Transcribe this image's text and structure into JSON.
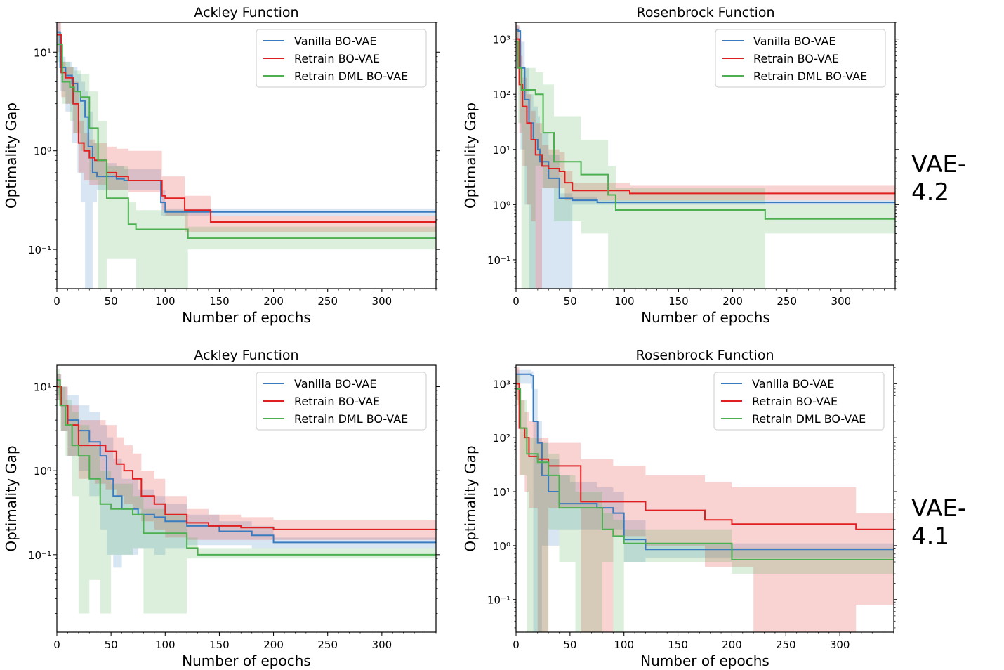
{
  "figure": {
    "row_labels": [
      "VAE-4.2",
      "VAE-4.1"
    ]
  },
  "chart_data": [
    {
      "type": "line",
      "title": "Ackley Function",
      "xlabel": "Number of epochs",
      "ylabel": "Optimality Gap",
      "yscale": "log",
      "xlim": [
        0,
        350
      ],
      "ylim": [
        0.04,
        20
      ],
      "xticks": [
        0,
        50,
        100,
        150,
        200,
        250,
        300
      ],
      "xtick_labels": [
        "0",
        "50",
        "100",
        "150",
        "200",
        "250",
        "300"
      ],
      "yticks": [
        0.1,
        1,
        10
      ],
      "ytick_labels": [
        "10⁻¹",
        "10⁰",
        "10¹"
      ],
      "legend": "top-right",
      "series": [
        {
          "name": "Vanilla BO-VAE",
          "color": "#3a7bbf",
          "x": [
            0,
            3,
            8,
            14,
            19,
            22,
            26,
            29,
            33,
            37,
            45,
            55,
            62,
            72,
            96,
            100,
            113,
            118,
            350
          ],
          "y": [
            16,
            7,
            5.8,
            4.8,
            4,
            3.2,
            2.2,
            1.1,
            0.6,
            0.55,
            0.55,
            0.52,
            0.5,
            0.5,
            0.3,
            0.24,
            0.24,
            0.24,
            0.24
          ],
          "lower": [
            12,
            4,
            2.5,
            1.2,
            0.6,
            0.3,
            0.02,
            0.02,
            0.3,
            0.4,
            0.4,
            0.4,
            0.4,
            0.4,
            0.22,
            0.22,
            0.22,
            0.22,
            0.22
          ],
          "upper": [
            20,
            9,
            8,
            7,
            6,
            5,
            4,
            2.5,
            1.2,
            0.8,
            0.75,
            0.7,
            0.65,
            0.65,
            0.4,
            0.26,
            0.26,
            0.26,
            0.26
          ]
        },
        {
          "name": "Retrain BO-VAE",
          "color": "#e02020",
          "x": [
            0,
            4,
            8,
            15,
            20,
            25,
            30,
            35,
            46,
            55,
            66,
            97,
            100,
            118,
            124,
            142,
            350
          ],
          "y": [
            15,
            6.2,
            5.5,
            3,
            1.2,
            1.0,
            0.85,
            0.8,
            0.6,
            0.55,
            0.5,
            0.35,
            0.33,
            0.25,
            0.25,
            0.19,
            0.19
          ],
          "lower": [
            10,
            3.5,
            3,
            1.5,
            0.6,
            0.5,
            0.45,
            0.45,
            0.4,
            0.4,
            0.38,
            0.25,
            0.22,
            0.15,
            0.15,
            0.15,
            0.15
          ],
          "upper": [
            20,
            8,
            7,
            5,
            2,
            1.5,
            1.3,
            1.2,
            1.1,
            1.05,
            1.0,
            0.55,
            0.55,
            0.35,
            0.35,
            0.22,
            0.22
          ]
        },
        {
          "name": "Retrain DML BO-VAE",
          "color": "#4caf50",
          "x": [
            0,
            5,
            12,
            16,
            22,
            30,
            38,
            46,
            66,
            73,
            121,
            350
          ],
          "y": [
            12,
            5.0,
            4.4,
            4.0,
            3.5,
            1.7,
            0.8,
            0.33,
            0.18,
            0.16,
            0.13,
            0.13
          ],
          "lower": [
            8,
            3,
            2,
            1.5,
            1.0,
            0.5,
            0.02,
            0.08,
            0.08,
            0.02,
            0.1,
            0.1
          ],
          "upper": [
            16,
            8,
            7,
            6.5,
            6,
            4,
            2,
            0.7,
            0.3,
            0.25,
            0.17,
            0.17
          ]
        }
      ]
    },
    {
      "type": "line",
      "title": "Rosenbrock Function",
      "xlabel": "Number of epochs",
      "ylabel": "Optimality Gap",
      "yscale": "log",
      "xlim": [
        0,
        350
      ],
      "ylim": [
        0.03,
        2000
      ],
      "xticks": [
        0,
        50,
        100,
        150,
        200,
        250,
        300
      ],
      "xtick_labels": [
        "0",
        "50",
        "100",
        "150",
        "200",
        "250",
        "300"
      ],
      "yticks": [
        0.1,
        1,
        10,
        100,
        1000
      ],
      "ytick_labels": [
        "10⁻¹",
        "10⁰",
        "10¹",
        "10²",
        "10³"
      ],
      "legend": "top-right",
      "series": [
        {
          "name": "Vanilla BO-VAE",
          "color": "#3a7bbf",
          "x": [
            0,
            2,
            4,
            8,
            12,
            16,
            20,
            22,
            30,
            40,
            52,
            75,
            350
          ],
          "y": [
            1500,
            1400,
            300,
            80,
            30,
            15,
            10,
            6,
            3,
            1.3,
            1.2,
            1.1,
            1.1
          ],
          "lower": [
            800,
            500,
            10,
            1,
            0.02,
            0.02,
            0.02,
            0.02,
            0.02,
            0.02,
            1.0,
            1.0,
            1.0
          ],
          "upper": [
            1800,
            1700,
            900,
            300,
            100,
            60,
            40,
            20,
            8,
            1.6,
            1.4,
            1.2,
            1.2
          ]
        },
        {
          "name": "Retrain BO-VAE",
          "color": "#e02020",
          "x": [
            0,
            3,
            6,
            10,
            14,
            18,
            24,
            30,
            40,
            45,
            52,
            85,
            105,
            350
          ],
          "y": [
            1000,
            150,
            60,
            30,
            15,
            8,
            5,
            4.5,
            4,
            2.5,
            1.8,
            1.8,
            1.6,
            1.6
          ],
          "lower": [
            500,
            20,
            5,
            1,
            0.5,
            0.02,
            2,
            2,
            2,
            1.2,
            1.2,
            1.2,
            1.2,
            1.2
          ],
          "upper": [
            1800,
            500,
            200,
            100,
            50,
            30,
            12,
            10,
            9,
            4,
            2.5,
            2.5,
            2.2,
            2.2
          ]
        },
        {
          "name": "Retrain DML BO-VAE",
          "color": "#4caf50",
          "x": [
            0,
            2,
            5,
            18,
            25,
            35,
            60,
            85,
            92,
            230,
            350
          ],
          "y": [
            900,
            300,
            120,
            100,
            20,
            6,
            3.5,
            1.5,
            0.8,
            0.55,
            0.55
          ],
          "lower": [
            400,
            30,
            0.02,
            5,
            2,
            0.5,
            0.3,
            0.02,
            0.02,
            0.3,
            0.3
          ],
          "upper": [
            1500,
            800,
            300,
            250,
            150,
            40,
            15,
            5,
            2,
            1.0,
            1.0
          ]
        }
      ]
    },
    {
      "type": "line",
      "title": "Ackley Function",
      "xlabel": "Number of epochs",
      "ylabel": "Optimality Gap",
      "yscale": "log",
      "xlim": [
        0,
        350
      ],
      "ylim": [
        0.012,
        18
      ],
      "xticks": [
        0,
        50,
        100,
        150,
        200,
        250,
        300
      ],
      "xtick_labels": [
        "0",
        "50",
        "100",
        "150",
        "200",
        "250",
        "300"
      ],
      "yticks": [
        0.1,
        1,
        10
      ],
      "ytick_labels": [
        "10⁻¹",
        "10⁰",
        "10¹"
      ],
      "legend": "top-right",
      "series": [
        {
          "name": "Vanilla BO-VAE",
          "color": "#3a7bbf",
          "x": [
            0,
            4,
            10,
            20,
            30,
            40,
            46,
            52,
            60,
            75,
            90,
            100,
            120,
            150,
            180,
            200,
            210,
            350
          ],
          "y": [
            10,
            6,
            4,
            3,
            2.2,
            1.5,
            0.8,
            0.5,
            0.35,
            0.3,
            0.28,
            0.25,
            0.22,
            0.19,
            0.17,
            0.14,
            0.14,
            0.14
          ],
          "lower": [
            7,
            3,
            1.5,
            1,
            0.5,
            0.2,
            0.1,
            0.07,
            0.1,
            0.12,
            0.1,
            0.12,
            0.13,
            0.13,
            0.12,
            0.12,
            0.12,
            0.12
          ],
          "upper": [
            14,
            10,
            8,
            6,
            5,
            3.5,
            2.5,
            1.4,
            0.8,
            0.6,
            0.5,
            0.4,
            0.3,
            0.25,
            0.22,
            0.16,
            0.16,
            0.16
          ]
        },
        {
          "name": "Retrain BO-VAE",
          "color": "#e02020",
          "x": [
            0,
            4,
            10,
            20,
            35,
            45,
            55,
            62,
            70,
            78,
            90,
            100,
            120,
            140,
            170,
            200,
            350
          ],
          "y": [
            10,
            6,
            3.5,
            2.0,
            2.0,
            1.7,
            1.2,
            1.0,
            0.8,
            0.5,
            0.4,
            0.3,
            0.24,
            0.22,
            0.21,
            0.2,
            0.2
          ],
          "lower": [
            7,
            3,
            1.5,
            0.8,
            0.7,
            0.6,
            0.5,
            0.4,
            0.35,
            0.25,
            0.2,
            0.16,
            0.15,
            0.15,
            0.15,
            0.15,
            0.15
          ],
          "upper": [
            14,
            10,
            6,
            4,
            4,
            3.5,
            2.5,
            2.0,
            1.6,
            1.0,
            0.8,
            0.5,
            0.35,
            0.3,
            0.28,
            0.26,
            0.26
          ]
        },
        {
          "name": "Retrain DML BO-VAE",
          "color": "#4caf50",
          "x": [
            0,
            3,
            8,
            14,
            20,
            30,
            40,
            50,
            70,
            80,
            100,
            120,
            130,
            350
          ],
          "y": [
            12,
            6,
            3.5,
            2.0,
            1.5,
            0.8,
            0.4,
            0.35,
            0.3,
            0.18,
            0.18,
            0.12,
            0.1,
            0.1
          ],
          "lower": [
            8,
            3,
            1.5,
            0.5,
            0.02,
            0.05,
            0.02,
            0.1,
            0.12,
            0.02,
            0.02,
            0.09,
            0.09,
            0.09
          ],
          "upper": [
            16,
            10,
            7,
            5,
            3.5,
            2,
            1.0,
            0.7,
            0.5,
            0.35,
            0.3,
            0.16,
            0.12,
            0.12
          ]
        }
      ]
    },
    {
      "type": "line",
      "title": "Rosenbrock Function",
      "xlabel": "Number of epochs",
      "ylabel": "Optimality Gap",
      "yscale": "log",
      "xlim": [
        0,
        350
      ],
      "ylim": [
        0.025,
        2200
      ],
      "xticks": [
        0,
        50,
        100,
        150,
        200,
        250,
        300
      ],
      "xtick_labels": [
        "0",
        "50",
        "100",
        "150",
        "200",
        "250",
        "300"
      ],
      "yticks": [
        0.1,
        1,
        10,
        100,
        1000
      ],
      "ytick_labels": [
        "10⁻¹",
        "10⁰",
        "10¹",
        "10²",
        "10³"
      ],
      "legend": "top-right",
      "series": [
        {
          "name": "Vanilla BO-VAE",
          "color": "#3a7bbf",
          "x": [
            0,
            14,
            16,
            20,
            24,
            30,
            40,
            50,
            60,
            75,
            90,
            100,
            120,
            350
          ],
          "y": [
            1500,
            1400,
            200,
            80,
            20,
            10,
            6,
            6,
            6,
            5,
            4,
            1.3,
            0.85,
            0.85
          ],
          "lower": [
            1000,
            800,
            0.02,
            0.02,
            1,
            1,
            2,
            2,
            2,
            2,
            2,
            0.5,
            0.6,
            0.6
          ],
          "upper": [
            1800,
            1700,
            800,
            200,
            80,
            40,
            20,
            15,
            15,
            12,
            10,
            3,
            1.1,
            1.1
          ]
        },
        {
          "name": "Retrain BO-VAE",
          "color": "#e02020",
          "x": [
            0,
            3,
            8,
            12,
            20,
            30,
            55,
            60,
            90,
            120,
            175,
            200,
            220,
            315,
            350
          ],
          "y": [
            1000,
            150,
            100,
            45,
            40,
            30,
            30,
            6.5,
            6.5,
            4.5,
            3,
            2.5,
            2.5,
            2.0,
            2.0
          ],
          "lower": [
            500,
            20,
            10,
            5,
            0.02,
            5,
            5,
            0.02,
            1.5,
            1.0,
            0.4,
            0.4,
            0.02,
            0.08,
            0.08
          ],
          "upper": [
            2000,
            500,
            300,
            200,
            100,
            80,
            80,
            40,
            30,
            20,
            15,
            12,
            12,
            4,
            4
          ]
        },
        {
          "name": "Retrain DML BO-VAE",
          "color": "#4caf50",
          "x": [
            0,
            4,
            10,
            20,
            30,
            40,
            55,
            80,
            90,
            100,
            200,
            350
          ],
          "y": [
            800,
            150,
            50,
            35,
            20,
            5,
            5,
            2,
            1.5,
            1.1,
            0.55,
            0.55
          ],
          "lower": [
            400,
            20,
            0.02,
            0.02,
            2,
            0.5,
            0.02,
            0.5,
            0.02,
            0.5,
            0.3,
            0.3
          ],
          "upper": [
            1500,
            500,
            100,
            80,
            50,
            20,
            10,
            4,
            3,
            2,
            0.9,
            0.9
          ]
        }
      ]
    }
  ]
}
